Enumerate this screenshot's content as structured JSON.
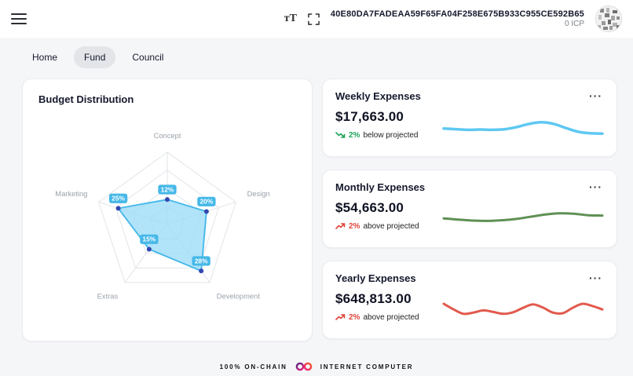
{
  "header": {
    "account_id": "40E80DA7FADEAA59F65FA04F258E675B933C955CE592B65",
    "balance": "0 ICP",
    "text_size_label": "тT"
  },
  "tabs": [
    {
      "label": "Home",
      "active": false
    },
    {
      "label": "Fund",
      "active": true
    },
    {
      "label": "Council",
      "active": false
    }
  ],
  "icons": {
    "more": "···"
  },
  "budget_card": {
    "title": "Budget Distribution"
  },
  "expense_cards": [
    {
      "title": "Weekly Expenses",
      "amount": "$17,663.00",
      "delta": "2%",
      "delta_note": "below projected",
      "direction": "down",
      "delta_color": "#1fa45b"
    },
    {
      "title": "Monthly Expenses",
      "amount": "$54,663.00",
      "delta": "2%",
      "delta_note": "above projected",
      "direction": "up",
      "delta_color": "#e0453a"
    },
    {
      "title": "Yearly Expenses",
      "amount": "$648,813.00",
      "delta": "2%",
      "delta_note": "above projected",
      "direction": "up",
      "delta_color": "#e0453a"
    }
  ],
  "footer": {
    "on_chain": "100% ON-CHAIN",
    "brand": "INTERNET COMPUTER"
  },
  "chart_data": [
    {
      "type": "radar",
      "title": "Budget Distribution",
      "axes": [
        "Concept",
        "Design",
        "Development",
        "Extras",
        "Marketing"
      ],
      "values": [
        12,
        20,
        28,
        15,
        25
      ],
      "unit": "%",
      "max": 35,
      "grid_levels": 4,
      "fill_color": "#9ddcf7",
      "stroke_color": "#45b8e8",
      "point_color": "#3347b0",
      "badge_color": "#45b8e8",
      "axis_label_color": "#9aa1a9"
    },
    {
      "type": "line",
      "title": "Weekly Expenses",
      "values": [
        48,
        46,
        44,
        45,
        44,
        46,
        53,
        63,
        68,
        63,
        50,
        38,
        33,
        32
      ],
      "color": "#5ec8f2",
      "stroke_width": 3.5
    },
    {
      "type": "line",
      "title": "Monthly Expenses",
      "values": [
        52,
        48,
        45,
        44,
        46,
        50,
        57,
        64,
        68,
        67,
        62,
        61
      ],
      "color": "#5f9054",
      "stroke_width": 3
    },
    {
      "type": "line",
      "title": "Yearly Expenses",
      "values": [
        70,
        52,
        38,
        42,
        49,
        44,
        38,
        43,
        57,
        68,
        58,
        42,
        40,
        57,
        70,
        63,
        52
      ],
      "color": "#e25a4e",
      "stroke_width": 3
    }
  ]
}
